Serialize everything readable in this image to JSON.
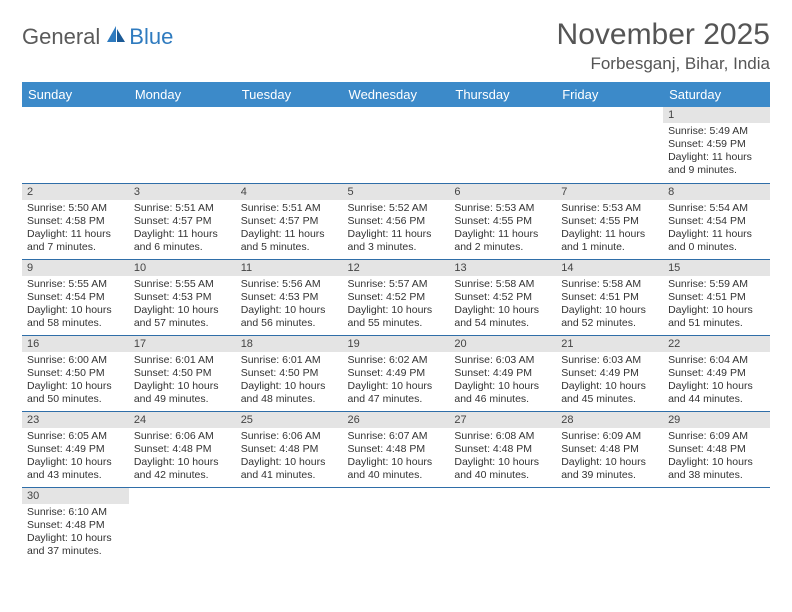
{
  "logo": {
    "text1": "General",
    "text2": "Blue"
  },
  "title": "November 2025",
  "location": "Forbesganj, Bihar, India",
  "colors": {
    "header_bg": "#3c8ac9",
    "header_text": "#ffffff",
    "daynum_bg": "#e4e4e4",
    "cell_border": "#2f6ea8",
    "logo_gray": "#5a5a5a",
    "logo_blue": "#2f7bbf"
  },
  "weekdays": [
    "Sunday",
    "Monday",
    "Tuesday",
    "Wednesday",
    "Thursday",
    "Friday",
    "Saturday"
  ],
  "first_day_index": 6,
  "days": [
    {
      "n": 1,
      "sr": "5:49 AM",
      "ss": "4:59 PM",
      "dl": "11 hours and 9 minutes."
    },
    {
      "n": 2,
      "sr": "5:50 AM",
      "ss": "4:58 PM",
      "dl": "11 hours and 7 minutes."
    },
    {
      "n": 3,
      "sr": "5:51 AM",
      "ss": "4:57 PM",
      "dl": "11 hours and 6 minutes."
    },
    {
      "n": 4,
      "sr": "5:51 AM",
      "ss": "4:57 PM",
      "dl": "11 hours and 5 minutes."
    },
    {
      "n": 5,
      "sr": "5:52 AM",
      "ss": "4:56 PM",
      "dl": "11 hours and 3 minutes."
    },
    {
      "n": 6,
      "sr": "5:53 AM",
      "ss": "4:55 PM",
      "dl": "11 hours and 2 minutes."
    },
    {
      "n": 7,
      "sr": "5:53 AM",
      "ss": "4:55 PM",
      "dl": "11 hours and 1 minute."
    },
    {
      "n": 8,
      "sr": "5:54 AM",
      "ss": "4:54 PM",
      "dl": "11 hours and 0 minutes."
    },
    {
      "n": 9,
      "sr": "5:55 AM",
      "ss": "4:54 PM",
      "dl": "10 hours and 58 minutes."
    },
    {
      "n": 10,
      "sr": "5:55 AM",
      "ss": "4:53 PM",
      "dl": "10 hours and 57 minutes."
    },
    {
      "n": 11,
      "sr": "5:56 AM",
      "ss": "4:53 PM",
      "dl": "10 hours and 56 minutes."
    },
    {
      "n": 12,
      "sr": "5:57 AM",
      "ss": "4:52 PM",
      "dl": "10 hours and 55 minutes."
    },
    {
      "n": 13,
      "sr": "5:58 AM",
      "ss": "4:52 PM",
      "dl": "10 hours and 54 minutes."
    },
    {
      "n": 14,
      "sr": "5:58 AM",
      "ss": "4:51 PM",
      "dl": "10 hours and 52 minutes."
    },
    {
      "n": 15,
      "sr": "5:59 AM",
      "ss": "4:51 PM",
      "dl": "10 hours and 51 minutes."
    },
    {
      "n": 16,
      "sr": "6:00 AM",
      "ss": "4:50 PM",
      "dl": "10 hours and 50 minutes."
    },
    {
      "n": 17,
      "sr": "6:01 AM",
      "ss": "4:50 PM",
      "dl": "10 hours and 49 minutes."
    },
    {
      "n": 18,
      "sr": "6:01 AM",
      "ss": "4:50 PM",
      "dl": "10 hours and 48 minutes."
    },
    {
      "n": 19,
      "sr": "6:02 AM",
      "ss": "4:49 PM",
      "dl": "10 hours and 47 minutes."
    },
    {
      "n": 20,
      "sr": "6:03 AM",
      "ss": "4:49 PM",
      "dl": "10 hours and 46 minutes."
    },
    {
      "n": 21,
      "sr": "6:03 AM",
      "ss": "4:49 PM",
      "dl": "10 hours and 45 minutes."
    },
    {
      "n": 22,
      "sr": "6:04 AM",
      "ss": "4:49 PM",
      "dl": "10 hours and 44 minutes."
    },
    {
      "n": 23,
      "sr": "6:05 AM",
      "ss": "4:49 PM",
      "dl": "10 hours and 43 minutes."
    },
    {
      "n": 24,
      "sr": "6:06 AM",
      "ss": "4:48 PM",
      "dl": "10 hours and 42 minutes."
    },
    {
      "n": 25,
      "sr": "6:06 AM",
      "ss": "4:48 PM",
      "dl": "10 hours and 41 minutes."
    },
    {
      "n": 26,
      "sr": "6:07 AM",
      "ss": "4:48 PM",
      "dl": "10 hours and 40 minutes."
    },
    {
      "n": 27,
      "sr": "6:08 AM",
      "ss": "4:48 PM",
      "dl": "10 hours and 40 minutes."
    },
    {
      "n": 28,
      "sr": "6:09 AM",
      "ss": "4:48 PM",
      "dl": "10 hours and 39 minutes."
    },
    {
      "n": 29,
      "sr": "6:09 AM",
      "ss": "4:48 PM",
      "dl": "10 hours and 38 minutes."
    },
    {
      "n": 30,
      "sr": "6:10 AM",
      "ss": "4:48 PM",
      "dl": "10 hours and 37 minutes."
    }
  ],
  "labels": {
    "sunrise": "Sunrise:",
    "sunset": "Sunset:",
    "daylight": "Daylight:"
  }
}
